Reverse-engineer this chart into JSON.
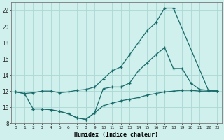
{
  "xlabel": "Humidex (Indice chaleur)",
  "xlim": [
    -0.5,
    23.5
  ],
  "ylim": [
    8,
    23
  ],
  "yticks": [
    8,
    10,
    12,
    14,
    16,
    18,
    20,
    22
  ],
  "xticks": [
    0,
    1,
    2,
    3,
    4,
    5,
    6,
    7,
    8,
    9,
    10,
    11,
    12,
    13,
    14,
    15,
    16,
    17,
    18,
    19,
    20,
    21,
    22,
    23
  ],
  "bg_color": "#cff0ec",
  "grid_color": "#aad8d3",
  "line_color": "#1a6b6b",
  "line1_x": [
    0,
    1,
    2,
    3,
    4,
    5,
    6,
    7,
    8,
    9,
    10,
    11,
    12,
    13,
    14,
    15,
    16,
    17,
    18,
    22,
    23
  ],
  "line1_y": [
    11.9,
    11.7,
    11.8,
    12.0,
    12.0,
    11.8,
    11.9,
    12.1,
    12.2,
    12.5,
    13.5,
    14.5,
    15.0,
    16.5,
    18.0,
    19.5,
    20.5,
    22.3,
    22.3,
    12.1,
    12.0
  ],
  "line2_x": [
    2,
    3,
    4,
    5,
    6,
    7,
    8,
    9,
    10,
    11,
    12,
    13,
    14,
    15,
    16,
    17,
    18,
    19,
    20,
    21,
    22,
    23
  ],
  "line2_y": [
    9.8,
    9.8,
    9.7,
    9.5,
    9.2,
    8.7,
    8.5,
    9.3,
    12.3,
    12.5,
    12.5,
    13.0,
    14.5,
    15.5,
    16.5,
    17.4,
    14.8,
    14.8,
    13.0,
    12.2,
    12.1,
    12.0
  ],
  "line3_x": [
    0,
    1,
    2,
    3,
    4,
    5,
    6,
    7,
    8,
    9,
    10,
    11,
    12,
    13,
    14,
    15,
    16,
    17,
    18,
    19,
    20,
    21,
    22,
    23
  ],
  "line3_y": [
    11.9,
    11.7,
    9.8,
    9.8,
    9.7,
    9.5,
    9.2,
    8.7,
    8.5,
    9.3,
    10.2,
    10.5,
    10.8,
    11.0,
    11.2,
    11.5,
    11.7,
    11.9,
    12.0,
    12.1,
    12.1,
    12.0,
    12.0,
    12.0
  ]
}
